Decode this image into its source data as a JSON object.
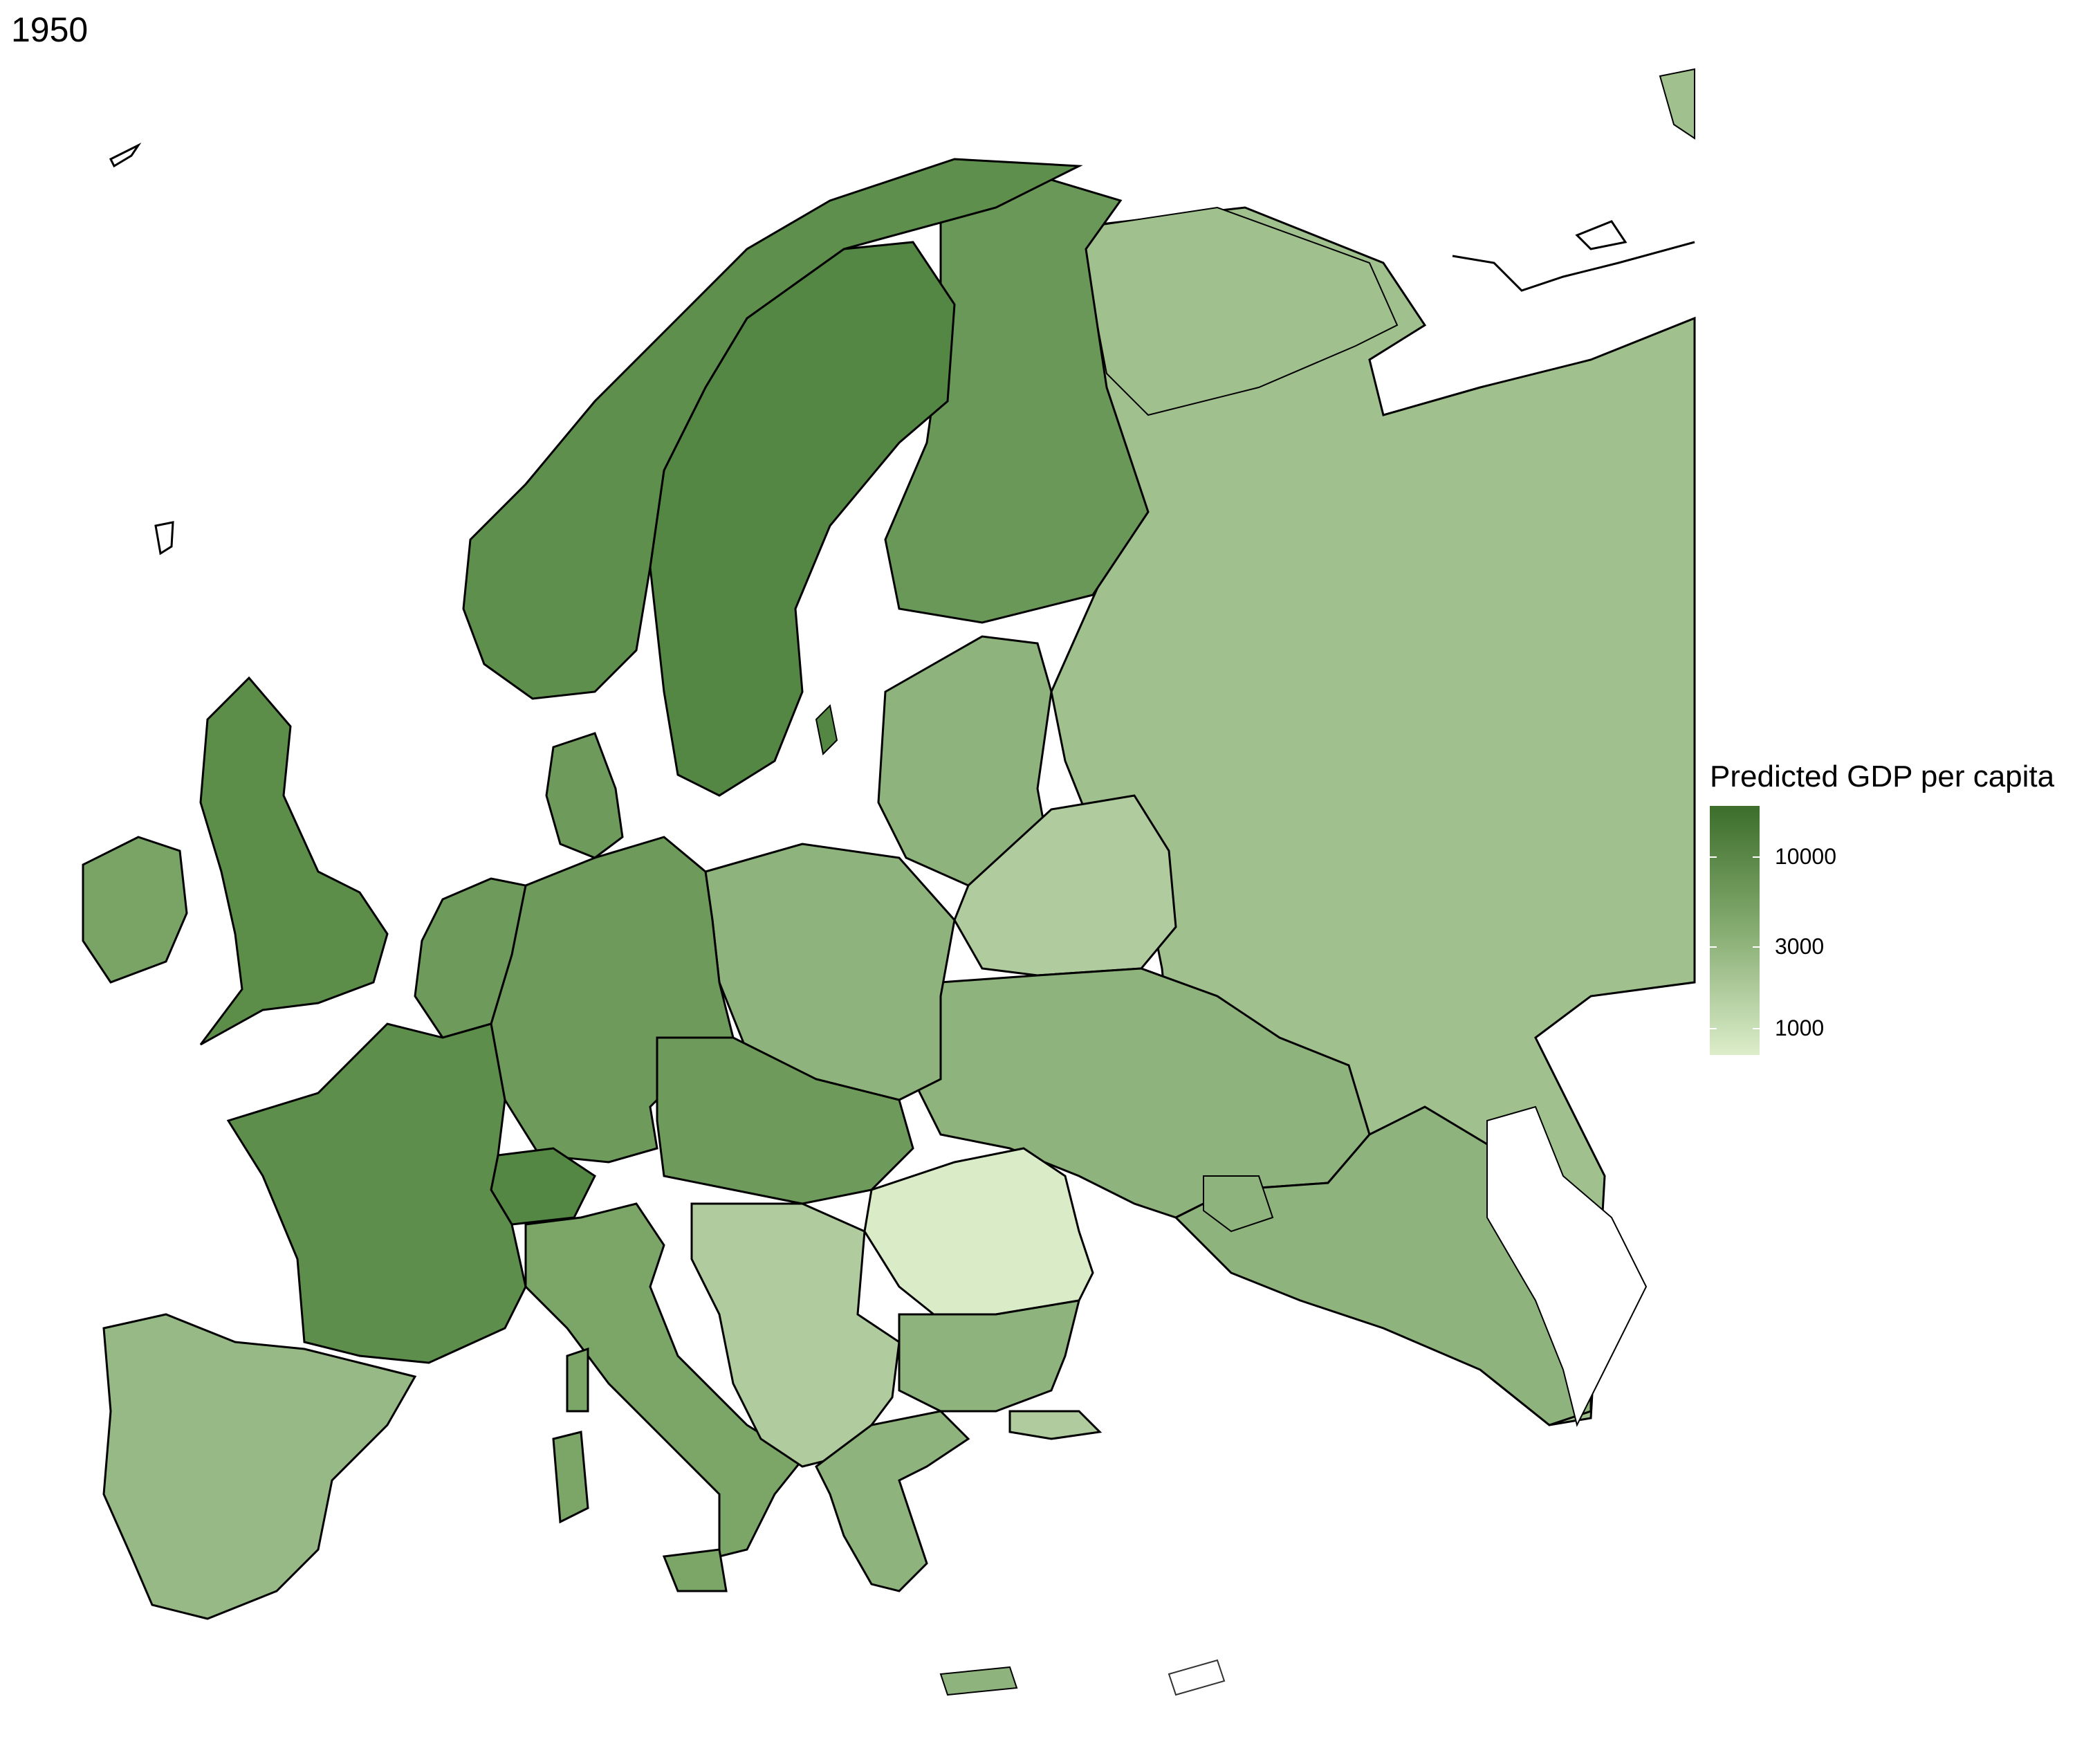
{
  "title": "1950",
  "legend": {
    "title": "Predicted GDP per capita",
    "ticks": [
      {
        "label": "10000",
        "value": 10000
      },
      {
        "label": "3000",
        "value": 3000
      },
      {
        "label": "1000",
        "value": 1000
      }
    ],
    "scale": "log",
    "range": [
      700,
      20000
    ],
    "colors": {
      "high": "#3c6e2a",
      "mid": "#86ac72",
      "low": "#dcedca"
    }
  },
  "map": {
    "region_colors": {
      "scandinavia": "#548743",
      "norway": "#5e8f4c",
      "finland": "#6a9858",
      "uk": "#5c8d49",
      "ireland": "#79a466",
      "western_europe": "#5e8e4b",
      "central_europe": "#6e9b5b",
      "iberia": "#97b986",
      "italy": "#7ba668",
      "eastern_europe": "#8eb37c",
      "russia": "#a0c08e",
      "romania": "#d9ebc7",
      "balkans": "#b0cc9e",
      "caucasus": "#8fb37d"
    },
    "border_color": "#000000",
    "subregion_border_color": "#555555"
  }
}
